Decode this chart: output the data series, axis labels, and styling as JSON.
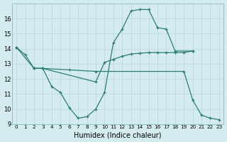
{
  "line1_x": [
    0,
    1,
    2,
    3,
    4,
    5,
    6,
    7,
    8,
    9,
    10,
    11,
    12,
    13,
    14,
    15,
    16,
    17,
    18,
    20
  ],
  "line1_y": [
    14.1,
    13.6,
    12.7,
    12.7,
    11.5,
    11.1,
    10.1,
    9.4,
    9.5,
    10.0,
    11.1,
    14.4,
    15.3,
    16.5,
    16.6,
    16.6,
    15.4,
    15.3,
    13.85,
    13.85
  ],
  "line2_x": [
    0,
    2,
    3,
    9,
    10,
    11,
    12,
    13,
    14,
    15,
    16,
    17,
    18,
    19,
    20
  ],
  "line2_y": [
    14.1,
    12.7,
    12.7,
    11.8,
    13.1,
    13.3,
    13.5,
    13.65,
    13.7,
    13.75,
    13.75,
    13.75,
    13.75,
    13.75,
    13.85
  ],
  "line3_x": [
    2,
    3,
    6,
    9,
    19,
    20,
    21,
    22,
    23
  ],
  "line3_y": [
    12.7,
    12.7,
    12.6,
    12.5,
    12.5,
    10.6,
    9.6,
    9.4,
    9.3
  ],
  "line_color": "#2d7c6e",
  "bg_color": "#d4ecf0",
  "grid_color": "#c0dde3",
  "xlabel": "Humidex (Indice chaleur)",
  "ylim": [
    9,
    17
  ],
  "xlim": [
    -0.5,
    23.5
  ],
  "yticks": [
    9,
    10,
    11,
    12,
    13,
    14,
    15,
    16
  ],
  "xticks": [
    0,
    1,
    2,
    3,
    4,
    5,
    6,
    7,
    8,
    9,
    10,
    11,
    12,
    13,
    14,
    15,
    16,
    17,
    18,
    19,
    20,
    21,
    22,
    23
  ]
}
